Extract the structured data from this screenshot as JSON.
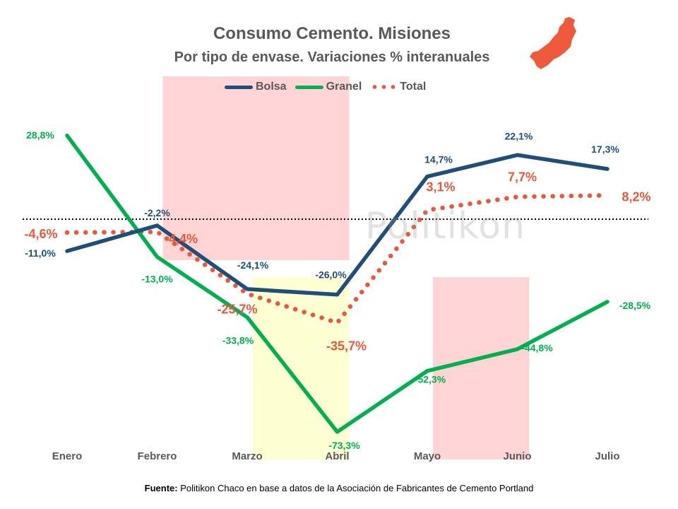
{
  "chart_data": {
    "type": "line",
    "title": "Consumo Cemento. Misiones",
    "subtitle": "Por tipo de envase. Variaciones % interanuales",
    "categories": [
      "Enero",
      "Febrero",
      "Marzo",
      "Abril",
      "Mayo",
      "Junio",
      "Julio"
    ],
    "series": [
      {
        "name": "Bolsa",
        "color": "#1f4e79",
        "style": "solid",
        "values": [
          -11.0,
          -2.2,
          -24.1,
          -26.0,
          14.7,
          22.1,
          17.3
        ],
        "labels": [
          "-11,0%",
          "-2,2%",
          "-24,1%",
          "-26,0%",
          "14,7%",
          "22,1%",
          "17,3%"
        ]
      },
      {
        "name": "Granel",
        "color": "#00b050",
        "style": "solid",
        "values": [
          28.8,
          -13.0,
          -33.8,
          -73.3,
          -52.3,
          -44.8,
          -28.5
        ],
        "labels": [
          "28,8%",
          "-13,0%",
          "-33,8%",
          "-73,3%",
          "-52,3%",
          "-44,8%",
          "-28,5%"
        ]
      },
      {
        "name": "Total",
        "color": "#e8583c",
        "style": "dotted",
        "values": [
          -4.6,
          -4.4,
          -25.7,
          -35.7,
          3.1,
          7.7,
          8.2
        ],
        "labels": [
          "-4,6%",
          "-4,4%",
          "-25,7%",
          "-35,7%",
          "3,1%",
          "7,7%",
          "8,2%"
        ]
      }
    ],
    "zero_line": true,
    "legend": "top",
    "grid": false,
    "highlight_bands": [
      {
        "from": "Febrero",
        "to": "Abril",
        "color": "#ffcccc"
      },
      {
        "from": "Marzo",
        "to": "Abril",
        "color": "#ffffcc"
      },
      {
        "from": "Mayo",
        "to": "Junio",
        "color": "#ffcccc"
      }
    ]
  },
  "watermark": "Politikon",
  "source": {
    "label": "Fuente:",
    "text": " Politikon Chaco en base a datos de la Asociación de Fabricantes de Cemento Portland"
  },
  "logo_color": "#f05a3c"
}
